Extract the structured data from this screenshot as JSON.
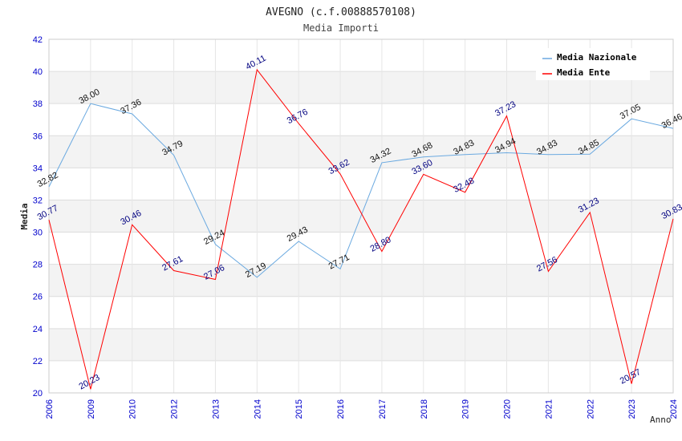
{
  "chart_data": {
    "type": "line",
    "title": "AVEGNO (c.f.00888570108)",
    "subtitle": "Media Importi",
    "xlabel": "Anno",
    "ylabel": "Media",
    "ylim": [
      20,
      42
    ],
    "yticks": [
      20,
      22,
      24,
      26,
      28,
      30,
      32,
      34,
      36,
      38,
      40,
      42
    ],
    "categories": [
      "2006",
      "2009",
      "2010",
      "2012",
      "2013",
      "2014",
      "2015",
      "2016",
      "2017",
      "2018",
      "2019",
      "2020",
      "2021",
      "2022",
      "2023",
      "2024"
    ],
    "legend_position": "top-right",
    "series": [
      {
        "name": "Media Nazionale",
        "color": "#6aa9e0",
        "values": [
          32.82,
          38.0,
          37.36,
          34.79,
          29.24,
          27.19,
          29.43,
          27.71,
          34.32,
          34.68,
          34.83,
          34.94,
          34.83,
          34.85,
          37.05,
          36.46
        ],
        "labels": [
          "32.82",
          "38.00",
          "37.36",
          "34.79",
          "29.24",
          "27.19",
          "29.43",
          "27.71",
          "34.32",
          "34.68",
          "34.83",
          "34.94",
          "34.83",
          "34.85",
          "37.05",
          "36.46"
        ]
      },
      {
        "name": "Media Ente",
        "color": "#ff0000",
        "values": [
          30.77,
          20.23,
          30.46,
          27.61,
          27.06,
          40.11,
          36.76,
          33.62,
          28.8,
          33.6,
          32.48,
          37.23,
          27.56,
          31.23,
          20.57,
          30.83
        ],
        "labels": [
          "30.77",
          "20.23",
          "30.46",
          "27.61",
          "27.06",
          "40.11",
          "36.76",
          "33.62",
          "28.80",
          "33.60",
          "32.48",
          "37.23",
          "27.56",
          "31.23",
          "20.57",
          "30.83"
        ]
      }
    ]
  }
}
